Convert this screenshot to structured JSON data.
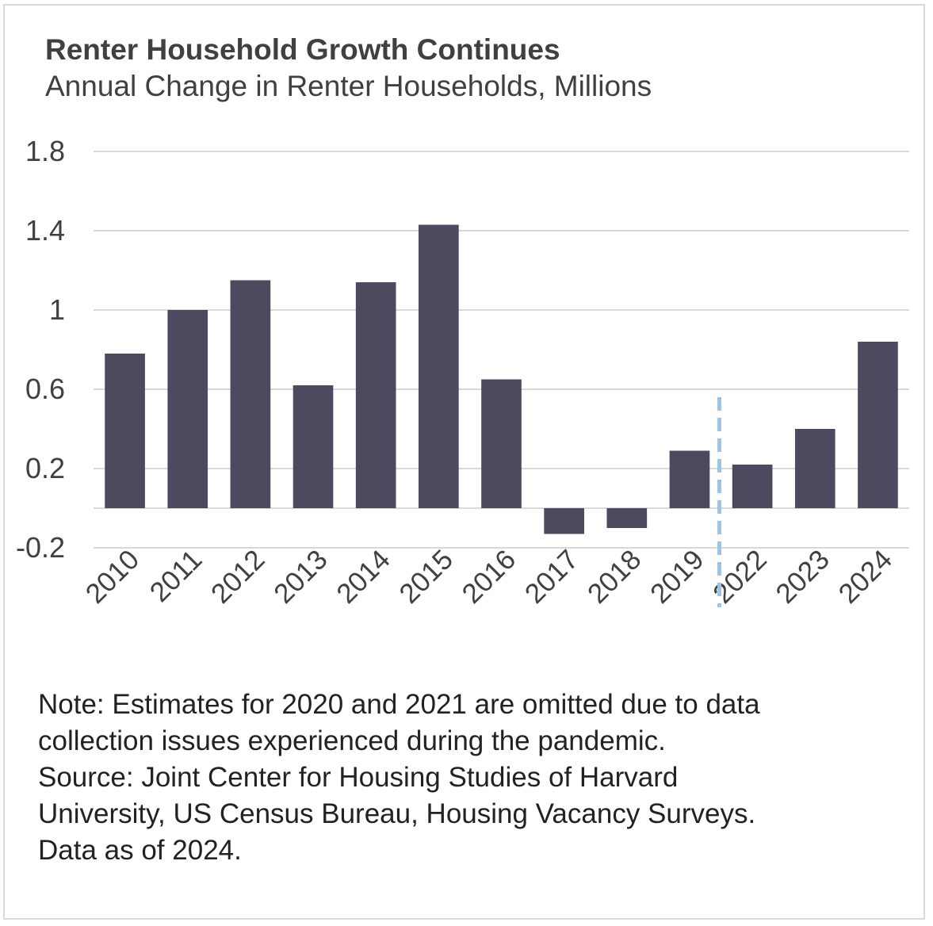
{
  "chart_data": {
    "type": "bar",
    "title": "Renter Household Growth Continues",
    "subtitle": "Annual Change in Renter Households, Millions",
    "categories": [
      "2010",
      "2011",
      "2012",
      "2013",
      "2014",
      "2015",
      "2016",
      "2017",
      "2018",
      "2019",
      "2022",
      "2023",
      "2024"
    ],
    "values": [
      0.78,
      1.0,
      1.15,
      0.62,
      1.14,
      1.43,
      0.65,
      -0.13,
      -0.1,
      0.29,
      0.22,
      0.4,
      0.84
    ],
    "ylim": [
      -0.2,
      1.8
    ],
    "yticks": [
      1.8,
      1.4,
      1,
      0.6,
      0.2,
      -0.2
    ],
    "ytick_labels": [
      "1.8",
      "1.4",
      "1",
      "0.6",
      "0.2",
      "-0.2"
    ],
    "xlabel": "",
    "ylabel": "",
    "grid": true,
    "break_marker": "dashed line between 2019 and 2022",
    "colors": {
      "bar": "#4c4a5f",
      "grid": "#d9d9d9",
      "break_line": "#9dc3e6",
      "text": "#404040"
    }
  },
  "notes": [
    "Note: Estimates for 2020 and 2021 are omitted due to data",
    "collection issues experienced during the pandemic.",
    "Source: Joint Center for Housing Studies of Harvard",
    "University, US Census Bureau, Housing Vacancy Surveys.",
    "Data as of 2024."
  ]
}
